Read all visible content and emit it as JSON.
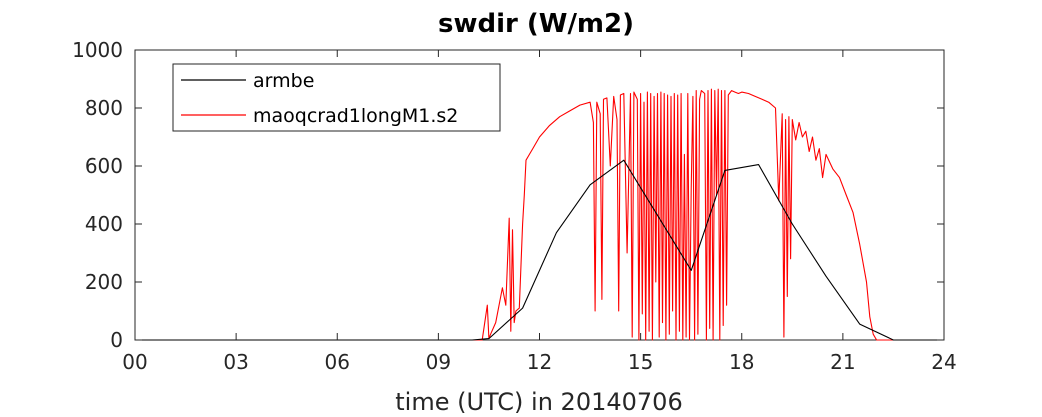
{
  "chart_data": {
    "type": "line",
    "title": "swdir  (W/m2)",
    "xlabel": "time (UTC) in 20140706",
    "ylabel": "",
    "xlim": [
      0,
      24
    ],
    "ylim": [
      0,
      1000
    ],
    "x_ticks": [
      0,
      3,
      6,
      9,
      12,
      15,
      18,
      21,
      24
    ],
    "x_tick_labels": [
      "00",
      "03",
      "06",
      "09",
      "12",
      "15",
      "18",
      "21",
      "24"
    ],
    "y_ticks": [
      0,
      200,
      400,
      600,
      800,
      1000
    ],
    "y_tick_labels": [
      "0",
      "200",
      "400",
      "600",
      "800",
      "1000"
    ],
    "grid": false,
    "legend_position": "top-left",
    "colors": {
      "armbe": "#000000",
      "maoqcrad1longM1.s2": "#ff0000",
      "axis": "#262626"
    },
    "series": [
      {
        "name": "armbe",
        "color": "#000000",
        "x": [
          0,
          1,
          2,
          3,
          4,
          5,
          6,
          7,
          8,
          9,
          10,
          10.5,
          11.5,
          12.5,
          13.5,
          14.5,
          15.5,
          16.5,
          17.5,
          18.5,
          19.5,
          20.5,
          21.5,
          22.5,
          23,
          24
        ],
        "y": [
          0,
          0,
          0,
          0,
          0,
          0,
          0,
          0,
          0,
          0,
          0,
          5,
          110,
          370,
          535,
          620,
          430,
          240,
          585,
          605,
          400,
          220,
          55,
          0,
          0,
          0
        ]
      },
      {
        "name": "maoqcrad1longM1.s2",
        "color": "#ff0000",
        "x": [
          0,
          5,
          9.5,
          10.2,
          10.3,
          10.45,
          10.5,
          10.55,
          10.7,
          10.9,
          11.0,
          11.1,
          11.15,
          11.2,
          11.25,
          11.3,
          11.4,
          11.5,
          11.55,
          11.6,
          11.7,
          11.8,
          12.0,
          12.3,
          12.6,
          12.9,
          13.2,
          13.5,
          13.6,
          13.65,
          13.7,
          13.8,
          13.85,
          13.9,
          14.0,
          14.1,
          14.2,
          14.3,
          14.35,
          14.4,
          14.5,
          14.6,
          14.7,
          14.75,
          14.8,
          14.9,
          14.95,
          15.0,
          15.05,
          15.1,
          15.15,
          15.2,
          15.25,
          15.3,
          15.35,
          15.4,
          15.45,
          15.5,
          15.55,
          15.6,
          15.65,
          15.7,
          15.75,
          15.8,
          15.85,
          15.9,
          15.95,
          16.0,
          16.05,
          16.1,
          16.15,
          16.2,
          16.25,
          16.3,
          16.35,
          16.4,
          16.45,
          16.5,
          16.55,
          16.6,
          16.65,
          16.7,
          16.75,
          16.8,
          16.9,
          16.95,
          17.0,
          17.05,
          17.1,
          17.15,
          17.2,
          17.25,
          17.3,
          17.35,
          17.4,
          17.45,
          17.5,
          17.55,
          17.6,
          17.7,
          17.8,
          17.9,
          18.0,
          18.2,
          18.4,
          18.6,
          18.8,
          19.0,
          19.1,
          19.2,
          19.25,
          19.3,
          19.35,
          19.4,
          19.45,
          19.5,
          19.6,
          19.7,
          19.8,
          19.9,
          20.0,
          20.1,
          20.2,
          20.3,
          20.4,
          20.5,
          20.7,
          20.9,
          21.1,
          21.3,
          21.5,
          21.7,
          21.8,
          21.9,
          22.0,
          22.05,
          22.1,
          23,
          24
        ],
        "y": [
          0,
          0,
          0,
          0,
          0,
          120,
          5,
          20,
          60,
          180,
          120,
          420,
          30,
          380,
          60,
          100,
          110,
          400,
          500,
          620,
          640,
          660,
          700,
          740,
          770,
          790,
          810,
          820,
          750,
          100,
          820,
          780,
          140,
          830,
          835,
          600,
          840,
          760,
          100,
          845,
          850,
          300,
          850,
          10,
          855,
          830,
          0,
          850,
          90,
          820,
          0,
          855,
          30,
          850,
          0,
          840,
          200,
          850,
          10,
          855,
          60,
          850,
          0,
          845,
          20,
          840,
          100,
          850,
          0,
          845,
          30,
          850,
          0,
          640,
          10,
          850,
          0,
          520,
          840,
          0,
          860,
          20,
          830,
          860,
          850,
          0,
          860,
          40,
          865,
          0,
          860,
          500,
          865,
          0,
          860,
          50,
          860,
          120,
          845,
          860,
          855,
          850,
          855,
          850,
          840,
          830,
          820,
          800,
          480,
          780,
          10,
          760,
          150,
          770,
          280,
          760,
          690,
          750,
          700,
          720,
          650,
          700,
          620,
          660,
          560,
          640,
          590,
          560,
          500,
          440,
          330,
          200,
          80,
          20,
          0,
          0,
          0,
          0,
          0
        ]
      }
    ]
  }
}
